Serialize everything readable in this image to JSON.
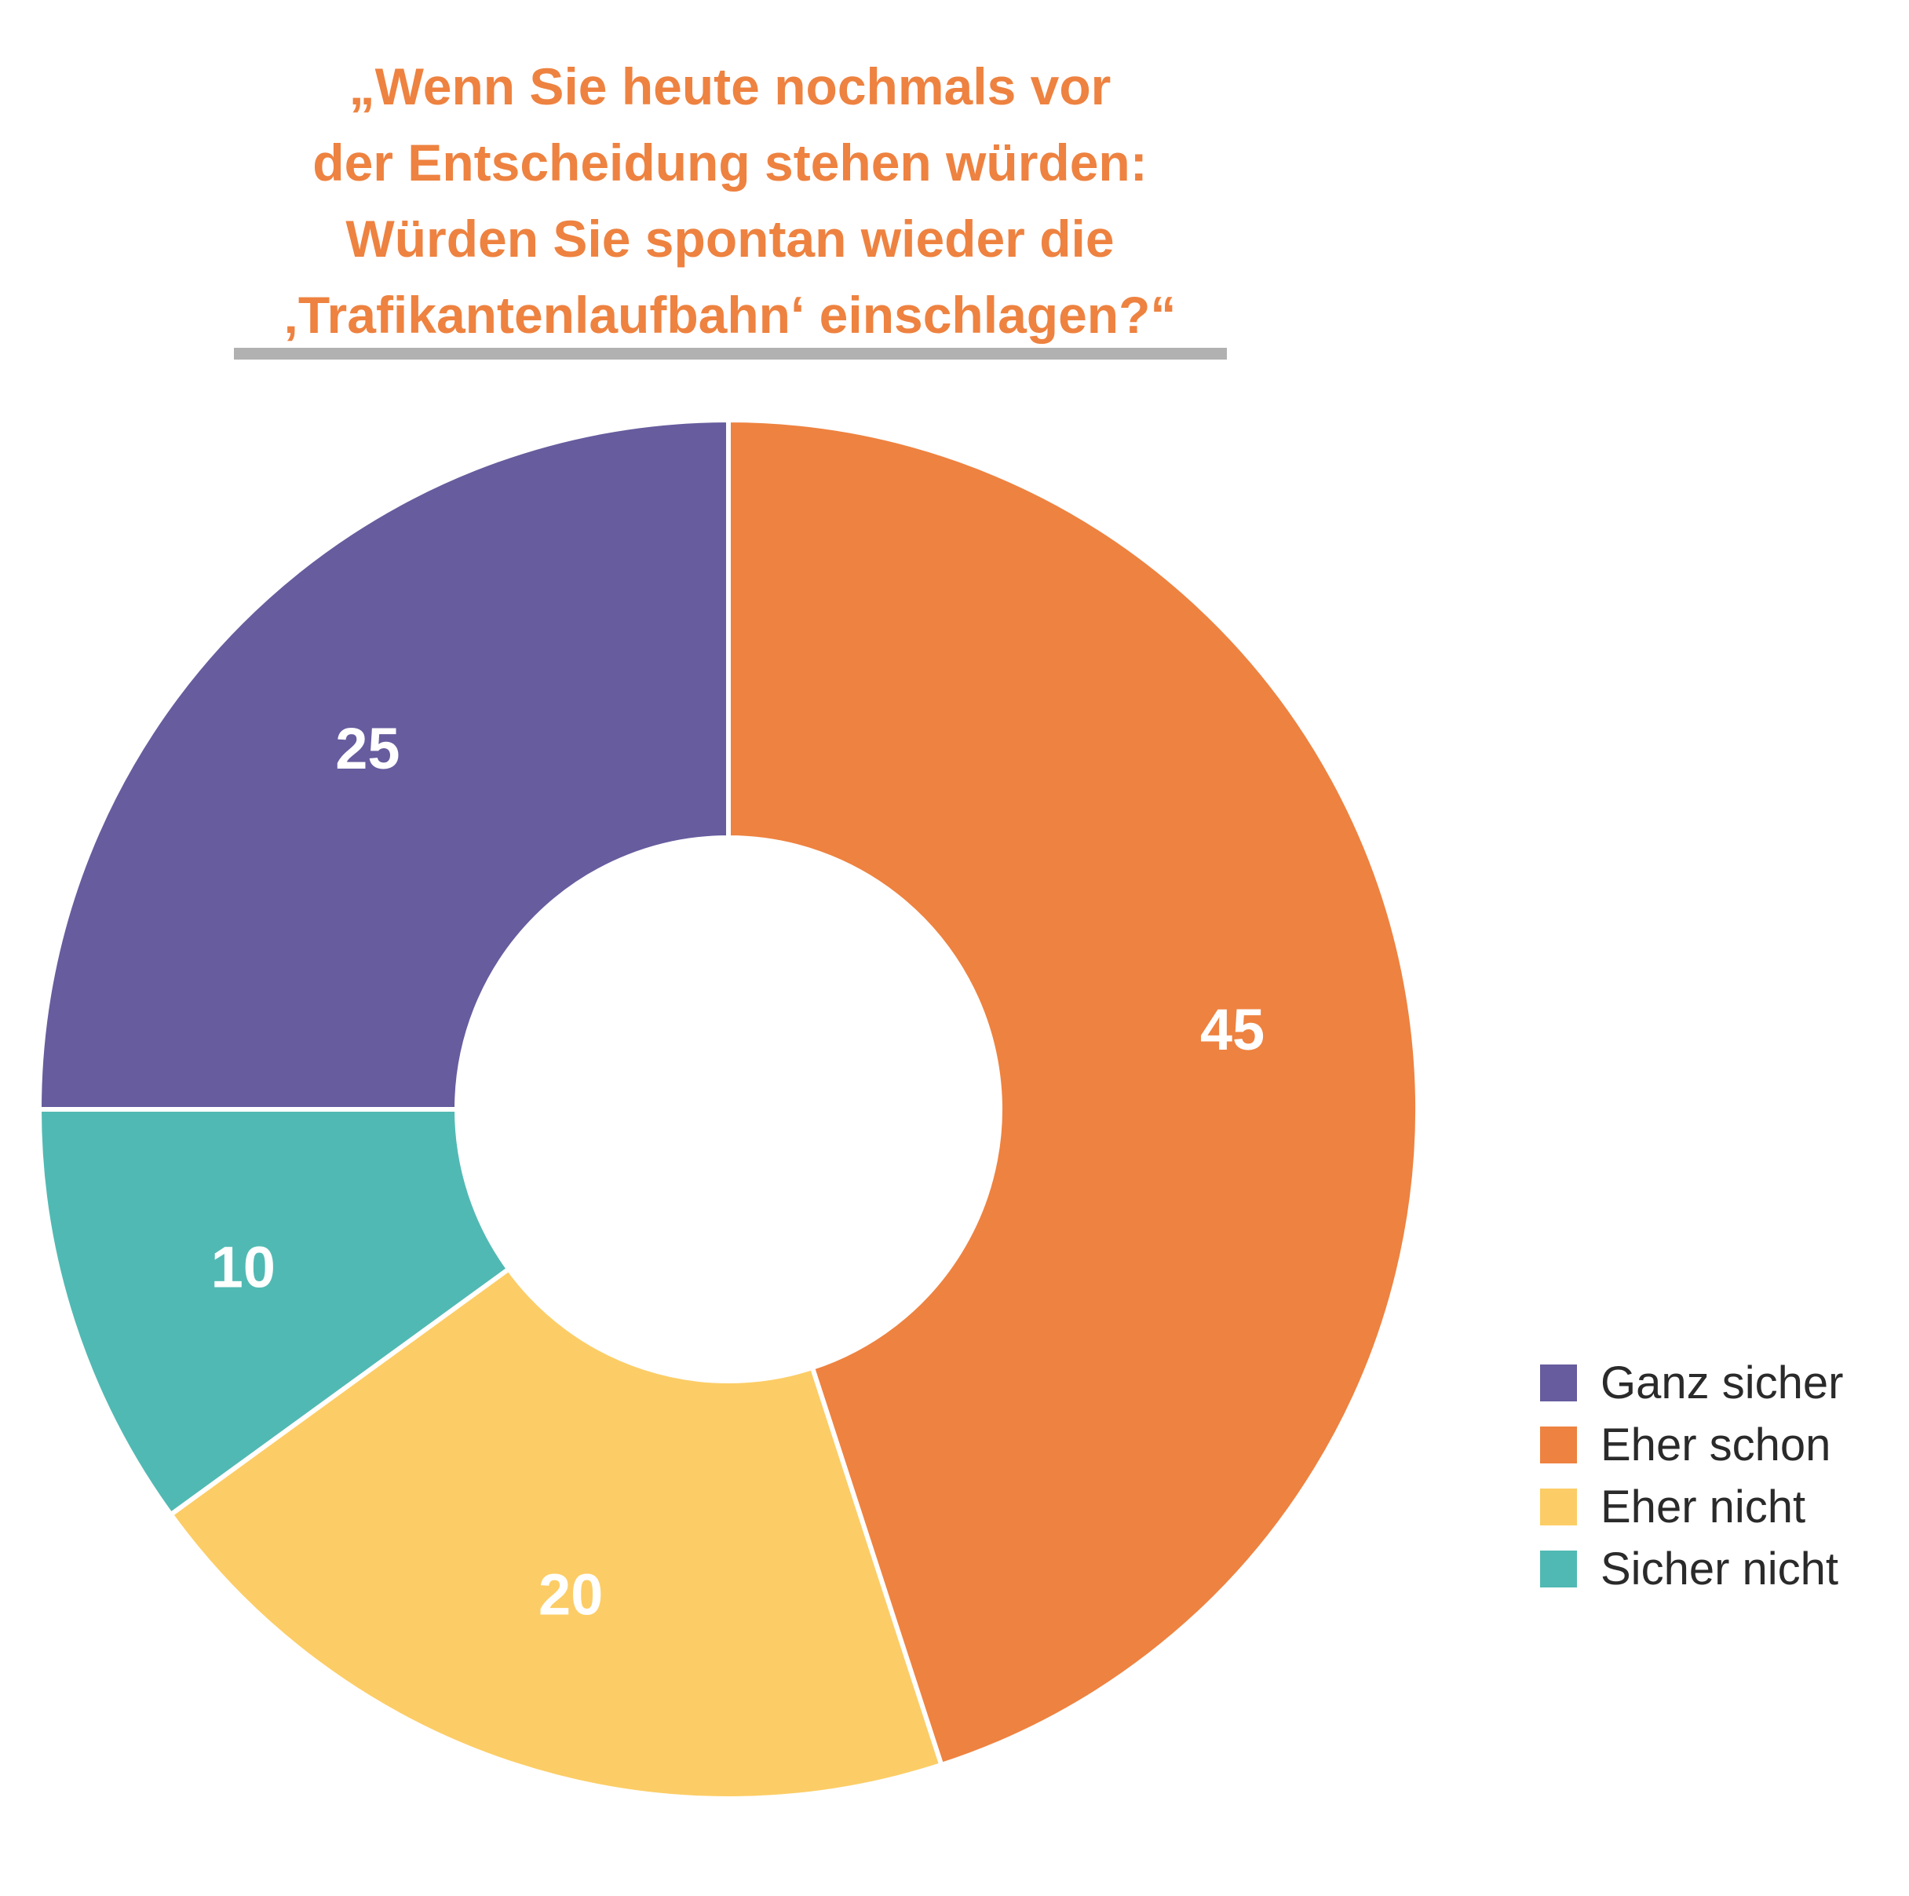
{
  "chart_data": {
    "type": "pie",
    "variant": "donut",
    "title_lines": [
      "„Wenn Sie heute nochmals vor",
      "der Entscheidung stehen würden:",
      "Würden Sie spontan wieder die",
      "‚Trafikantenlaufbahn‘ einschlagen?“"
    ],
    "slices": [
      {
        "label": "Eher schon",
        "value": 45,
        "color": "#ee8240"
      },
      {
        "label": "Eher nicht",
        "value": 20,
        "color": "#fccd66"
      },
      {
        "label": "Sicher nicht",
        "value": 10,
        "color": "#51b9b3"
      },
      {
        "label": "Ganz sicher",
        "value": 25,
        "color": "#665c9e"
      }
    ],
    "legend": {
      "position": "bottom-right",
      "items": [
        {
          "label": "Ganz sicher",
          "color": "#665c9e"
        },
        {
          "label": "Eher schon",
          "color": "#ee8240"
        },
        {
          "label": "Eher nicht",
          "color": "#fccd66"
        },
        {
          "label": "Sicher nicht",
          "color": "#51b9b3"
        }
      ]
    },
    "rule_color": "#b1b1b1",
    "title_color": "#ee8240"
  }
}
